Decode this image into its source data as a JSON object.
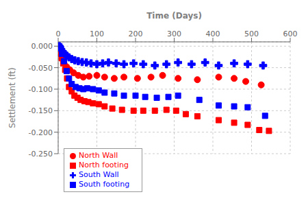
{
  "chart_data": {
    "type": "scatter",
    "xlabel": "Time (Days)",
    "ylabel": "Settlement (ft)",
    "xlim": [
      0,
      600
    ],
    "ylim": [
      -0.25,
      0.01
    ],
    "xticks": [
      0,
      100,
      200,
      300,
      400,
      500,
      600
    ],
    "yticks": [
      {
        "value": 0.0,
        "label": "0.000"
      },
      {
        "value": -0.05,
        "label": "-0.050"
      },
      {
        "value": -0.1,
        "label": "-0.100"
      },
      {
        "value": -0.15,
        "label": "-0.150"
      },
      {
        "value": -0.2,
        "label": "-0.200"
      },
      {
        "value": -0.25,
        "label": "-0.250"
      }
    ],
    "grid": true,
    "legend": "lower left",
    "series": [
      {
        "name": "North footing",
        "color": "#FF0000",
        "marker": "square",
        "x": [
          3,
          6,
          9,
          13,
          18,
          23,
          28,
          35,
          42,
          50,
          58,
          68,
          78,
          90,
          105,
          120,
          140,
          165,
          195,
          220,
          250,
          280,
          305,
          330,
          360,
          415,
          455,
          490,
          520,
          545
        ],
        "values": [
          -0.008,
          -0.018,
          -0.028,
          -0.04,
          -0.055,
          -0.075,
          -0.095,
          -0.105,
          -0.115,
          -0.12,
          -0.125,
          -0.128,
          -0.13,
          -0.133,
          -0.135,
          -0.14,
          -0.145,
          -0.148,
          -0.15,
          -0.15,
          -0.15,
          -0.148,
          -0.15,
          -0.158,
          -0.163,
          -0.172,
          -0.178,
          -0.183,
          -0.195,
          -0.197
        ]
      },
      {
        "name": "North Wall",
        "color": "#FF0000",
        "marker": "circle",
        "x": [
          3,
          6,
          10,
          15,
          22,
          30,
          40,
          52,
          65,
          80,
          100,
          120,
          145,
          170,
          205,
          240,
          270,
          310,
          360,
          415,
          455,
          485,
          525
        ],
        "values": [
          -0.005,
          -0.015,
          -0.028,
          -0.04,
          -0.048,
          -0.055,
          -0.062,
          -0.068,
          -0.072,
          -0.07,
          -0.068,
          -0.072,
          -0.075,
          -0.072,
          -0.075,
          -0.072,
          -0.068,
          -0.075,
          -0.078,
          -0.072,
          -0.075,
          -0.082,
          -0.09
        ]
      },
      {
        "name": "South footing",
        "color": "#0000FF",
        "marker": "square",
        "x": [
          3,
          6,
          10,
          15,
          22,
          28,
          35,
          45,
          55,
          65,
          75,
          90,
          105,
          120,
          145,
          170,
          200,
          225,
          255,
          285,
          310,
          365,
          415,
          455,
          490,
          535
        ],
        "values": [
          0.0,
          -0.005,
          -0.018,
          -0.035,
          -0.058,
          -0.075,
          -0.088,
          -0.095,
          -0.098,
          -0.1,
          -0.098,
          -0.1,
          -0.103,
          -0.108,
          -0.11,
          -0.115,
          -0.115,
          -0.118,
          -0.12,
          -0.118,
          -0.115,
          -0.125,
          -0.138,
          -0.14,
          -0.142,
          -0.162
        ]
      },
      {
        "name": "South Wall",
        "color": "#0000FF",
        "marker": "plus",
        "x": [
          3,
          5,
          8,
          12,
          17,
          22,
          28,
          35,
          43,
          52,
          62,
          73,
          85,
          100,
          115,
          130,
          150,
          170,
          195,
          220,
          250,
          280,
          310,
          345,
          380,
          415,
          455,
          490,
          530
        ],
        "values": [
          0.0,
          -0.003,
          -0.008,
          -0.013,
          -0.018,
          -0.022,
          -0.026,
          -0.03,
          -0.033,
          -0.035,
          -0.037,
          -0.038,
          -0.04,
          -0.042,
          -0.04,
          -0.038,
          -0.04,
          -0.042,
          -0.04,
          -0.042,
          -0.045,
          -0.042,
          -0.038,
          -0.042,
          -0.038,
          -0.045,
          -0.04,
          -0.042,
          -0.045
        ]
      }
    ]
  }
}
